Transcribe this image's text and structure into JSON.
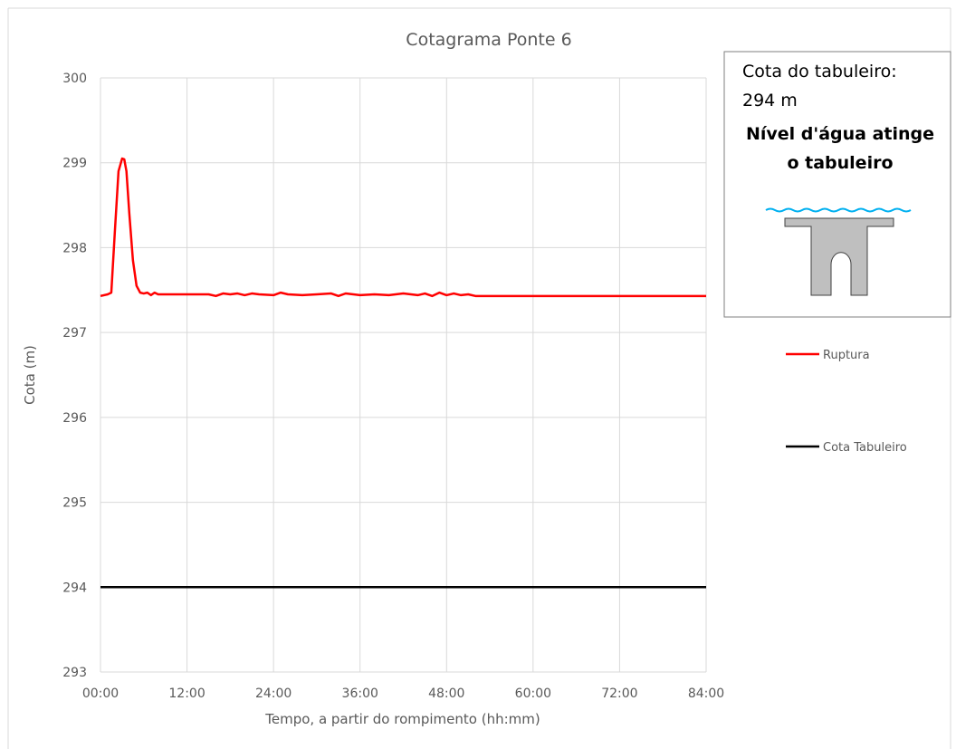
{
  "chart_data": {
    "type": "line",
    "title": "Cotagrama Ponte 6",
    "x_label": "Tempo, a partir do rompimento (hh:mm)",
    "y_label": "Cota (m)",
    "xlim": [
      0,
      84
    ],
    "xticks": [
      {
        "value": 0,
        "label": "00:00"
      },
      {
        "value": 12,
        "label": "12:00"
      },
      {
        "value": 24,
        "label": "24:00"
      },
      {
        "value": 36,
        "label": "36:00"
      },
      {
        "value": 48,
        "label": "48:00"
      },
      {
        "value": 60,
        "label": "60:00"
      },
      {
        "value": 72,
        "label": "72:00"
      },
      {
        "value": 84,
        "label": "84:00"
      }
    ],
    "ylim": [
      293,
      300
    ],
    "yticks": [
      293,
      294,
      295,
      296,
      297,
      298,
      299,
      300
    ],
    "grid": true,
    "series": [
      {
        "name": "Ruptura",
        "color": "#ff0000",
        "x": [
          0,
          1,
          1.5,
          2,
          2.5,
          3,
          3.3,
          3.6,
          4,
          4.5,
          5,
          5.5,
          6,
          6.5,
          7,
          7.5,
          8,
          9,
          12,
          15,
          16,
          17,
          18,
          19,
          20,
          21,
          22,
          24,
          25,
          26,
          28,
          30,
          32,
          33,
          34,
          36,
          38,
          40,
          42,
          44,
          45,
          46,
          47,
          48,
          49,
          50,
          51,
          52,
          60,
          72,
          84
        ],
        "values": [
          297.43,
          297.45,
          297.47,
          298.2,
          298.9,
          299.05,
          299.04,
          298.9,
          298.4,
          297.85,
          297.55,
          297.47,
          297.46,
          297.47,
          297.44,
          297.47,
          297.45,
          297.45,
          297.45,
          297.45,
          297.43,
          297.46,
          297.45,
          297.46,
          297.44,
          297.46,
          297.45,
          297.44,
          297.47,
          297.45,
          297.44,
          297.45,
          297.46,
          297.43,
          297.46,
          297.44,
          297.45,
          297.44,
          297.46,
          297.44,
          297.46,
          297.43,
          297.47,
          297.44,
          297.46,
          297.44,
          297.45,
          297.43,
          297.43,
          297.43,
          297.43
        ]
      },
      {
        "name": "Cota Tabuleiro",
        "color": "#000000",
        "x": [
          0,
          84
        ],
        "values": [
          294,
          294
        ]
      }
    ],
    "annotation": {
      "lines": [
        "Cota do tabuleiro:",
        "294 m"
      ],
      "bold_lines": [
        "Nível d'água atinge",
        "o tabuleiro"
      ]
    }
  }
}
